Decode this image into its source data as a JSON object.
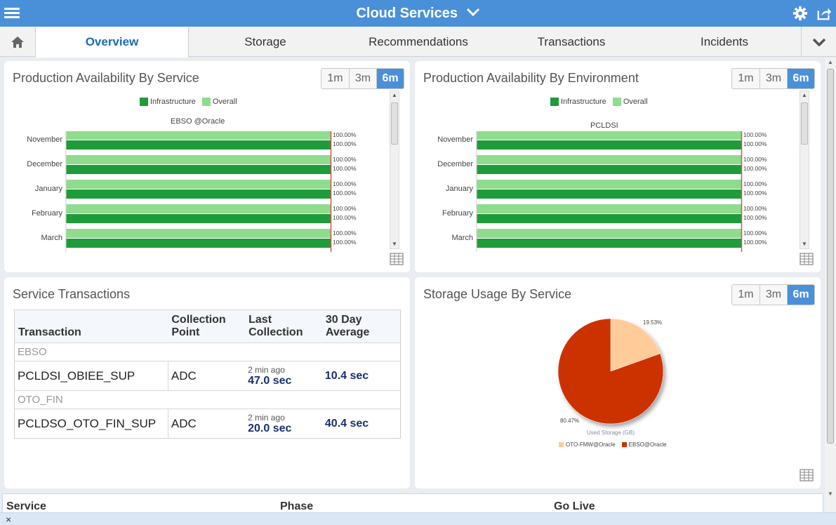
{
  "header": {
    "title": "Cloud Services",
    "menu_icon": "hamburger-menu-icon",
    "settings_icon": "gear-icon",
    "share_icon": "share-icon"
  },
  "tabs": {
    "home_icon": "home-icon",
    "items": [
      {
        "label": "Overview",
        "active": true
      },
      {
        "label": "Storage",
        "active": false
      },
      {
        "label": "Recommendations",
        "active": false
      },
      {
        "label": "Transactions",
        "active": false
      },
      {
        "label": "Incidents",
        "active": false
      }
    ],
    "more_icon": "chevron-down-icon"
  },
  "periods": [
    "1m",
    "3m",
    "6m"
  ],
  "selected_period": "6m",
  "colors": {
    "infrastructure": "#1f9b3a",
    "overall": "#8fdc8f",
    "target_line": "#d9534f",
    "pie_ebso": "#cc3300",
    "pie_oto": "#ffcc99",
    "accent": "#4a90d9"
  },
  "availability_service": {
    "title": "Production Availability By Service",
    "legend": [
      "Infrastructure",
      "Overall"
    ],
    "subtitle": "EBSO @Oracle"
  },
  "availability_environment": {
    "title": "Production Availability By Environment",
    "legend": [
      "Infrastructure",
      "Overall"
    ],
    "subtitle": "PCLDSI"
  },
  "service_transactions": {
    "title": "Service Transactions",
    "columns": [
      "Transaction",
      "Collection Point",
      "Last Collection",
      "30 Day Average"
    ],
    "col_head": {
      "transaction": "Transaction",
      "collection_1": "Collection",
      "collection_2": "Point",
      "last_1": "Last",
      "last_2": "Collection",
      "avg_1": "30 Day",
      "avg_2": "Average"
    },
    "groups": [
      {
        "name": "EBSO",
        "row": {
          "transaction": "PCLDSI_OBIEE_SUP",
          "collection_point": "ADC",
          "ago": "2 min ago",
          "last": "47.0 sec",
          "average": "10.4 sec"
        }
      },
      {
        "name": "OTO_FIN",
        "row": {
          "transaction": "PCLDSO_OTO_FIN_SUP",
          "collection_point": "ADC",
          "ago": "2 min ago",
          "last": "20.0 sec",
          "average": "40.4 sec"
        }
      }
    ]
  },
  "storage_usage": {
    "title": "Storage Usage By Service",
    "caption": "Used Storage (GB)",
    "labels": {
      "oto": "19.53%",
      "ebso": "80.47%"
    },
    "legend": [
      "OTO-FMW@Oracle",
      "EBSO@Oracle"
    ]
  },
  "bottom_table": {
    "columns": [
      "Service",
      "Phase",
      "Go Live"
    ]
  },
  "footer": {
    "close_label": "×"
  },
  "chart_data": [
    {
      "type": "bar",
      "orientation": "horizontal",
      "title": "EBSO @Oracle",
      "categories": [
        "November",
        "December",
        "January",
        "February",
        "March"
      ],
      "series": [
        {
          "name": "Overall",
          "values": [
            100,
            100,
            100,
            100,
            100
          ]
        },
        {
          "name": "Infrastructure",
          "values": [
            100,
            100,
            100,
            100,
            100
          ]
        }
      ],
      "value_labels": [
        "100.00%",
        "100.00%",
        "100.00%",
        "100.00%",
        "100.00%",
        "100.00%",
        "100.00%",
        "100.00%",
        "100.00%",
        "100.00%"
      ],
      "xlim": [
        0,
        100
      ],
      "legend": "top"
    },
    {
      "type": "bar",
      "orientation": "horizontal",
      "title": "PCLDSI",
      "categories": [
        "November",
        "December",
        "January",
        "February",
        "March"
      ],
      "series": [
        {
          "name": "Overall",
          "values": [
            100,
            100,
            100,
            100,
            100
          ]
        },
        {
          "name": "Infrastructure",
          "values": [
            100,
            100,
            100,
            100,
            100
          ]
        }
      ],
      "value_labels": [
        "100.00%",
        "100.00%",
        "100.00%",
        "100.00%",
        "100.00%",
        "100.00%",
        "100.00%",
        "100.00%",
        "100.00%",
        "100.00%"
      ],
      "xlim": [
        0,
        100
      ],
      "legend": "top"
    },
    {
      "type": "pie",
      "title": "Used Storage (GB)",
      "slices": [
        {
          "name": "OTO-FMW@Oracle",
          "value": 19.53,
          "label": "19.53%"
        },
        {
          "name": "EBSO@Oracle",
          "value": 80.47,
          "label": "80.47%"
        }
      ],
      "legend": "bottom"
    }
  ]
}
